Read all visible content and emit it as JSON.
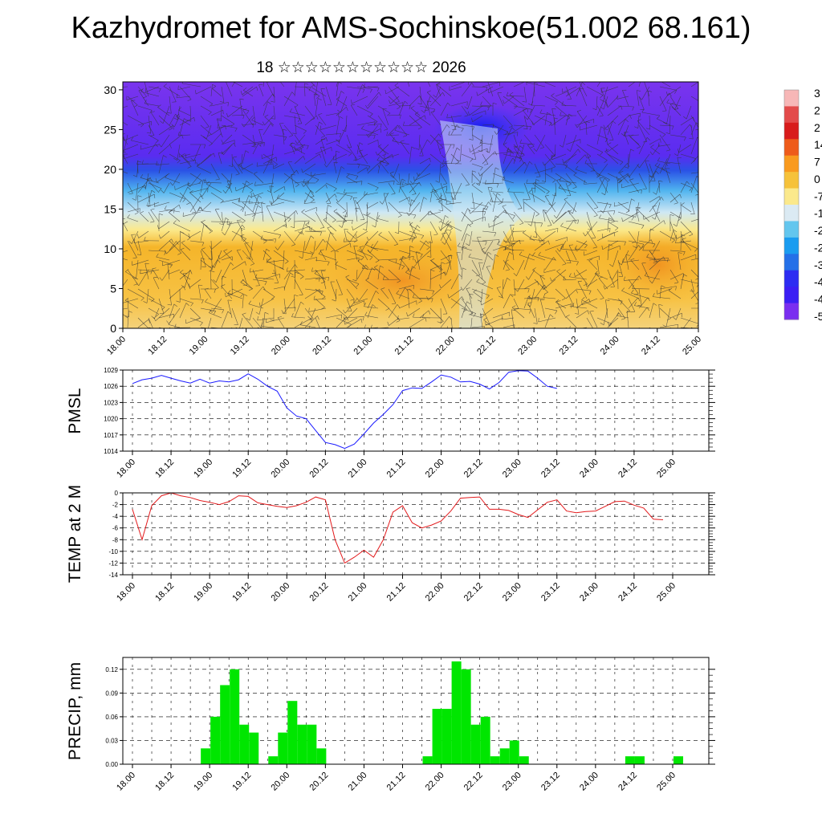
{
  "page": {
    "title": "Kazhydromet for AMS-Sochinskoe(51.002 68.161)",
    "subtitle": "18 ☆☆☆☆☆☆☆☆☆☆☆ 2026"
  },
  "colors": {
    "pmsl_line": "#1a1aff",
    "temp_line": "#e31a1c",
    "precip_bar": "#00e600",
    "cross_section_low": "#6a2cf0",
    "cross_section_high": "#f5b52a"
  },
  "chart_data": [
    {
      "type": "heatmap",
      "name": "cross-section",
      "title": "",
      "xlabel": "",
      "ylabel": "",
      "ylim": [
        0,
        31
      ],
      "yticks": [
        0,
        5,
        10,
        15,
        20,
        25,
        30
      ],
      "x_tick_labels": [
        "18.00",
        "18.12",
        "19.00",
        "19.12",
        "20.00",
        "20.12",
        "21.00",
        "21.12",
        "22.00",
        "22.12",
        "23.00",
        "23.12",
        "24.00",
        "24.12",
        "25.00"
      ],
      "colorbar_labels": [
        "3",
        "2",
        "2",
        "14",
        "7",
        "0",
        "-7",
        "-1",
        "-2",
        "-2",
        "-3",
        "-4",
        "-4",
        "-5"
      ],
      "colorbar_colors": [
        "#f7b7b7",
        "#e34a4a",
        "#d81b1b",
        "#ee5b1a",
        "#f99a1e",
        "#f6c23a",
        "#fbe98c",
        "#dbeaf3",
        "#63c6ee",
        "#1a9cf0",
        "#2470e8",
        "#2c2cf2",
        "#3b1ef4",
        "#7a2ef0"
      ]
    },
    {
      "type": "line",
      "name": "PMSL",
      "ylabel": "PMSL",
      "ylim": [
        1014,
        1029
      ],
      "yticks": [
        1014,
        1017,
        1020,
        1023,
        1026,
        1029
      ],
      "x_tick_labels": [
        "18.00",
        "18.12",
        "19.00",
        "19.12",
        "20.00",
        "20.12",
        "21.00",
        "21.12",
        "22.00",
        "22.12",
        "23.00",
        "23.12",
        "24.00",
        "24.12",
        "25.00"
      ],
      "x_step_hours": 3,
      "values": [
        1026.5,
        1027.2,
        1027.5,
        1028,
        1027.5,
        1027,
        1026.6,
        1027.3,
        1026.6,
        1027,
        1026.8,
        1027.2,
        1028.3,
        1027.3,
        1026,
        1025.1,
        1022,
        1020.5,
        1020,
        1017.8,
        1015.6,
        1015.2,
        1014.5,
        1015.3,
        1017.2,
        1019.2,
        1020.8,
        1022.6,
        1025.2,
        1025.7,
        1025.6,
        1026.8,
        1028.1,
        1027.7,
        1026.8,
        1026.9,
        1026.4,
        1025.5,
        1026.7,
        1028.6,
        1028.9,
        1028.8,
        1027.5,
        1026,
        1025.6
      ]
    },
    {
      "type": "line",
      "name": "TEMP at 2 M",
      "ylabel": "TEMP at 2 M",
      "ylim": [
        -14,
        0
      ],
      "yticks": [
        -14,
        -12,
        -10,
        -8,
        -6,
        -4,
        -2,
        0
      ],
      "x_tick_labels": [
        "18.00",
        "18.12",
        "19.00",
        "19.12",
        "20.00",
        "20.12",
        "21.00",
        "21.12",
        "22.00",
        "22.12",
        "23.00",
        "23.12",
        "24.00",
        "24.12",
        "25.00"
      ],
      "x_step_hours": 3,
      "values": [
        -2.8,
        -8,
        -2.2,
        -0.5,
        0,
        -0.5,
        -0.8,
        -1.3,
        -1.6,
        -2,
        -1.5,
        -0.5,
        -0.6,
        -1.7,
        -2,
        -2.3,
        -2.5,
        -2.2,
        -1.6,
        -0.7,
        -1.2,
        -8,
        -12,
        -11,
        -9.8,
        -11,
        -8,
        -3.3,
        -2.2,
        -5.1,
        -6,
        -5.5,
        -4.8,
        -3.1,
        -0.9,
        -0.8,
        -0.7,
        -2.8,
        -2.8,
        -3,
        -3.7,
        -4.2,
        -2.9,
        -1.6,
        -1.2,
        -3.1,
        -3.4,
        -3.2,
        -3.1,
        -2.3,
        -1.5,
        -1.4,
        -2.1,
        -2.6,
        -4.5,
        -4.6
      ]
    },
    {
      "type": "bar",
      "name": "PRECIP, mm",
      "ylabel": "PRECIP, mm",
      "ylim": [
        0,
        0.135
      ],
      "yticks": [
        0,
        0.03,
        0.06,
        0.09,
        0.12
      ],
      "ytick_labels": [
        "0.00",
        "0.03",
        "0.06",
        "0.09",
        "0.12"
      ],
      "x_tick_labels": [
        "18.00",
        "18.12",
        "19.00",
        "19.12",
        "20.00",
        "20.12",
        "21.00",
        "21.12",
        "22.00",
        "22.12",
        "23.00",
        "23.12",
        "24.00",
        "24.12",
        "25.00"
      ],
      "x_step_hours": 3,
      "values": [
        0,
        0,
        0,
        0,
        0,
        0,
        0,
        0,
        0.02,
        0.06,
        0.1,
        0.12,
        0.05,
        0.04,
        0,
        0.01,
        0.04,
        0.08,
        0.05,
        0.05,
        0.02,
        0,
        0,
        0,
        0,
        0,
        0,
        0,
        0,
        0,
        0,
        0.01,
        0.07,
        0.07,
        0.13,
        0.12,
        0.05,
        0.06,
        0.01,
        0.02,
        0.03,
        0.01,
        0,
        0,
        0,
        0,
        0,
        0,
        0,
        0,
        0,
        0,
        0.01,
        0.01,
        0,
        0,
        0,
        0.01,
        0
      ]
    }
  ]
}
